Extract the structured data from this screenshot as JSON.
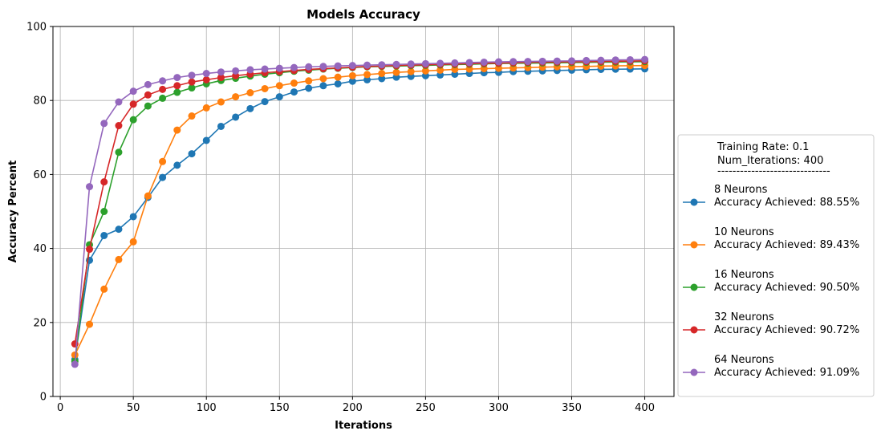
{
  "chart_data": {
    "type": "line",
    "title": "Models Accuracy",
    "xlabel": "Iterations",
    "ylabel": "Accuracy Percent",
    "xlim": [
      -5,
      420
    ],
    "ylim": [
      0,
      100
    ],
    "xticks": [
      "0",
      "50",
      "100",
      "150",
      "200",
      "250",
      "300",
      "350",
      "400"
    ],
    "yticks": [
      "0",
      "20",
      "40",
      "60",
      "80",
      "100"
    ],
    "grid": true,
    "legend_placement": "right",
    "legend_header": [
      "Training Rate: 0.1",
      "Num_Iterations: 400",
      "------------------------------"
    ],
    "x": [
      10,
      20,
      30,
      40,
      50,
      60,
      70,
      80,
      90,
      100,
      110,
      120,
      130,
      140,
      150,
      160,
      170,
      180,
      190,
      200,
      210,
      220,
      230,
      240,
      250,
      260,
      270,
      280,
      290,
      300,
      310,
      320,
      330,
      340,
      350,
      360,
      370,
      380,
      390,
      400
    ],
    "series": [
      {
        "name": "8 Neurons",
        "legend_detail": "Accuracy Achieved: 88.55%",
        "color": "#1f77b4",
        "values": [
          10.0,
          36.8,
          43.5,
          45.2,
          48.6,
          53.8,
          59.2,
          62.5,
          65.6,
          69.2,
          73.0,
          75.5,
          77.8,
          79.7,
          81.0,
          82.3,
          83.3,
          84.0,
          84.5,
          85.2,
          85.6,
          85.9,
          86.3,
          86.5,
          86.7,
          86.9,
          87.1,
          87.3,
          87.5,
          87.6,
          87.8,
          87.9,
          88.0,
          88.1,
          88.2,
          88.3,
          88.4,
          88.45,
          88.5,
          88.55
        ]
      },
      {
        "name": "10 Neurons",
        "legend_detail": "Accuracy Achieved: 89.43%",
        "color": "#ff7f0e",
        "values": [
          11.2,
          19.5,
          29.0,
          37.0,
          41.8,
          54.2,
          63.5,
          72.0,
          75.8,
          78.0,
          79.6,
          81.0,
          82.1,
          83.2,
          84.0,
          84.7,
          85.3,
          85.9,
          86.3,
          86.7,
          87.0,
          87.3,
          87.6,
          87.8,
          88.0,
          88.2,
          88.4,
          88.5,
          88.6,
          88.7,
          88.8,
          88.9,
          89.0,
          89.1,
          89.15,
          89.2,
          89.3,
          89.35,
          89.4,
          89.43
        ]
      },
      {
        "name": "16 Neurons",
        "legend_detail": "Accuracy Achieved: 90.50%",
        "color": "#2ca02c",
        "values": [
          9.5,
          41.0,
          50.0,
          66.0,
          74.8,
          78.5,
          80.6,
          82.2,
          83.4,
          84.5,
          85.4,
          86.0,
          86.6,
          87.1,
          87.5,
          87.9,
          88.2,
          88.5,
          88.7,
          88.9,
          89.1,
          89.2,
          89.3,
          89.4,
          89.5,
          89.6,
          89.7,
          89.8,
          89.9,
          90.0,
          90.05,
          90.1,
          90.15,
          90.2,
          90.25,
          90.3,
          90.35,
          90.4,
          90.45,
          90.5
        ]
      },
      {
        "name": "32 Neurons",
        "legend_detail": "Accuracy Achieved: 90.72%",
        "color": "#d62728",
        "values": [
          14.2,
          39.8,
          58.0,
          73.2,
          79.0,
          81.5,
          83.0,
          84.0,
          85.0,
          85.6,
          86.2,
          86.7,
          87.1,
          87.5,
          87.8,
          88.1,
          88.4,
          88.6,
          88.8,
          89.0,
          89.2,
          89.3,
          89.45,
          89.55,
          89.65,
          89.75,
          89.85,
          89.95,
          90.05,
          90.1,
          90.2,
          90.3,
          90.35,
          90.4,
          90.45,
          90.5,
          90.55,
          90.6,
          90.65,
          90.72
        ]
      },
      {
        "name": "64 Neurons",
        "legend_detail": "Accuracy Achieved: 91.09%",
        "color": "#9467bd",
        "values": [
          8.7,
          56.7,
          73.8,
          79.6,
          82.5,
          84.3,
          85.3,
          86.2,
          86.8,
          87.3,
          87.7,
          88.0,
          88.3,
          88.5,
          88.7,
          88.9,
          89.1,
          89.2,
          89.35,
          89.45,
          89.55,
          89.65,
          89.75,
          89.85,
          89.95,
          90.05,
          90.15,
          90.25,
          90.35,
          90.45,
          90.5,
          90.55,
          90.6,
          90.65,
          90.7,
          90.8,
          90.85,
          90.95,
          91.0,
          91.09
        ]
      }
    ]
  }
}
